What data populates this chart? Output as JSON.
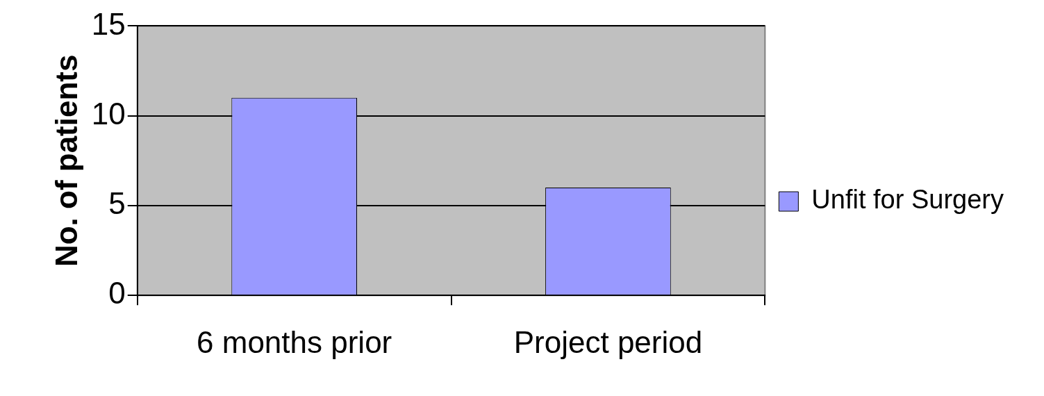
{
  "chart_data": {
    "type": "bar",
    "ylabel": "No. of patients",
    "categories": [
      "6 months prior",
      "Project period"
    ],
    "series": [
      {
        "name": "Unfit for Surgery",
        "color": "#9999ff",
        "values": [
          11,
          6
        ]
      }
    ],
    "ylim": [
      0,
      15
    ],
    "yticks": [
      0,
      5,
      10,
      15
    ],
    "grid": "y",
    "legend": "right"
  }
}
